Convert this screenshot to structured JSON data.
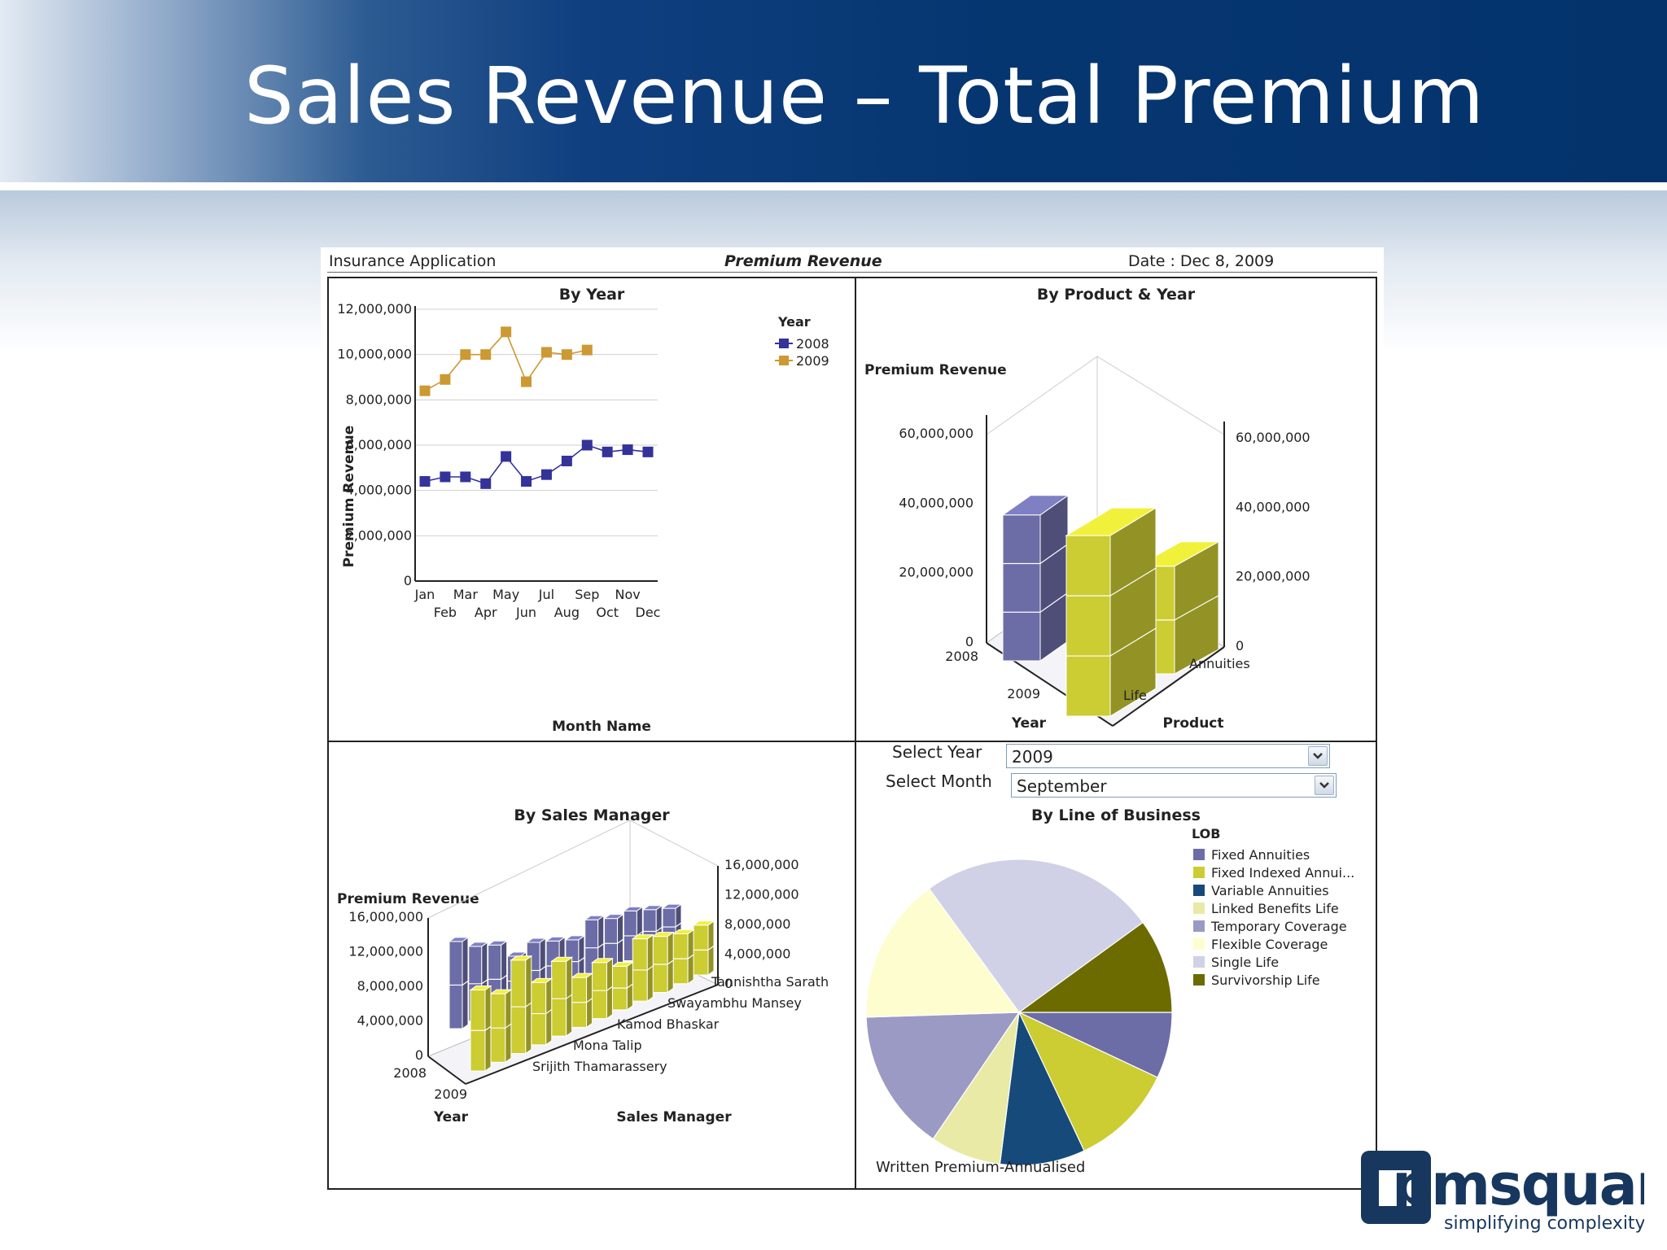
{
  "slide": {
    "title": "Sales Revenue – Total Premium"
  },
  "report": {
    "app_name": "Insurance Application",
    "report_title": "Premium Revenue",
    "date_label": "Date : Dec 8, 2009"
  },
  "controls": {
    "year_label": "Select Year",
    "year_value": "2009",
    "month_label": "Select Month",
    "month_value": "September"
  },
  "logo": {
    "text": "pmsquare",
    "tagline": "simplifying complexity"
  },
  "chart_data": [
    {
      "type": "line",
      "title": "By Year",
      "xlabel": "Month Name",
      "ylabel": "Premium Revenue",
      "ylim": [
        0,
        12000000
      ],
      "yticks": [
        "0",
        "2,000,000",
        "4,000,000",
        "6,000,000",
        "8,000,000",
        "10,000,000",
        "12,000,000"
      ],
      "categories": [
        "Jan",
        "Feb",
        "Mar",
        "Apr",
        "May",
        "Jun",
        "Jul",
        "Aug",
        "Sep",
        "Oct",
        "Nov",
        "Dec"
      ],
      "legend_title": "Year",
      "legend_position": "top-right",
      "grid": true,
      "series": [
        {
          "name": "2008",
          "color": "#33339a",
          "values": [
            4400000,
            4600000,
            4600000,
            4300000,
            5500000,
            4400000,
            4700000,
            5300000,
            6000000,
            5700000,
            5800000,
            5700000
          ]
        },
        {
          "name": "2009",
          "color": "#cc9933",
          "values": [
            8400000,
            8900000,
            10000000,
            10000000,
            11000000,
            8800000,
            10100000,
            10000000,
            10200000,
            null,
            null,
            null
          ]
        }
      ]
    },
    {
      "type": "bar",
      "subtype": "3d",
      "title": "By Product & Year",
      "zlabel": "Premium Revenue",
      "xlabel": "Year",
      "ylabel": "Product",
      "ylim": [
        0,
        60000000
      ],
      "yticks": [
        "0",
        "20,000,000",
        "40,000,000",
        "60,000,000"
      ],
      "years": [
        "2008",
        "2009"
      ],
      "products": [
        "Annuities",
        "Life"
      ],
      "series": [
        {
          "name": "2008",
          "color": "#6c6ca6",
          "values": {
            "Annuities": 42000000,
            "Life": 0
          }
        },
        {
          "name": "2009",
          "color": "#cccc33",
          "values": {
            "Annuities": 31000000,
            "Life": 52000000
          }
        }
      ]
    },
    {
      "type": "bar",
      "subtype": "3d",
      "title": "By Sales Manager",
      "zlabel": "Premium Revenue",
      "xlabel": "Year",
      "ylabel": "Sales Manager",
      "ylim": [
        0,
        16000000
      ],
      "yticks": [
        "0",
        "4,000,000",
        "8,000,000",
        "12,000,000",
        "16,000,000"
      ],
      "years": [
        "2008",
        "2009"
      ],
      "managers_shown": [
        "Tannishtha Sarath",
        "Swayambhu Mansey",
        "Kamod Bhaskar",
        "Mona Talip",
        "Srijith Thamarassery"
      ],
      "series": [
        {
          "name": "2008",
          "color": "#6c6ca6",
          "values": [
            14000000,
            12000000,
            11000000,
            8000000,
            9000000,
            8000000,
            7000000,
            9000000,
            8000000,
            8000000,
            7000000,
            6000000
          ]
        },
        {
          "name": "2009",
          "color": "#cccc33",
          "values": [
            13000000,
            11000000,
            15000000,
            10000000,
            12000000,
            8000000,
            9000000,
            7000000,
            10000000,
            9000000,
            8000000,
            8000000
          ]
        }
      ]
    },
    {
      "type": "pie",
      "title": "By Line of Business",
      "legend_title": "LOB",
      "legend_position": "right",
      "footer_label": "Written Premium-Annualised",
      "categories": [
        "Fixed Annuities",
        "Fixed Indexed Annui...",
        "Variable Annuities",
        "Linked Benefits Life",
        "Temporary Coverage",
        "Flexible Coverage",
        "Single Life",
        "Survivorship Life"
      ],
      "colors": [
        "#6c6ca6",
        "#cccc33",
        "#164a7a",
        "#e8eaa6",
        "#9a9ac4",
        "#fdfdd0",
        "#d0d0e6",
        "#6b6b00"
      ],
      "values": [
        7.0,
        11.0,
        9.0,
        7.5,
        15.0,
        15.5,
        25.0,
        10.0
      ]
    }
  ]
}
